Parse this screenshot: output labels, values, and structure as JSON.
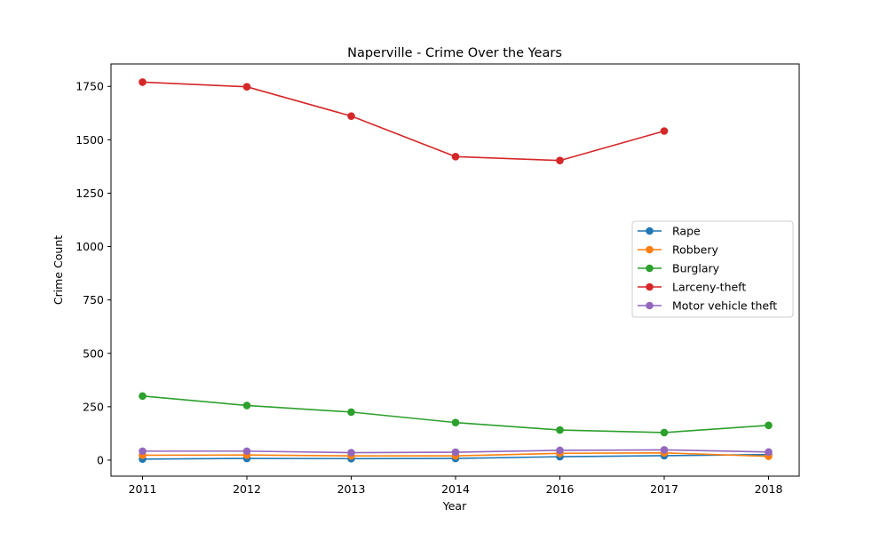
{
  "chart_data": {
    "type": "line",
    "title": "Naperville - Crime Over the Years",
    "xlabel": "Year",
    "ylabel": "Crime Count",
    "categories": [
      "2011",
      "2012",
      "2013",
      "2014",
      "2016",
      "2017",
      "2018"
    ],
    "ylim": [
      -75,
      1855
    ],
    "yticks": [
      0,
      250,
      500,
      750,
      1000,
      1250,
      1500,
      1750
    ],
    "grid": false,
    "legend_position": "center-right",
    "series": [
      {
        "name": "Rape",
        "color": "#1f77b4",
        "values": [
          5,
          8,
          7,
          8,
          16,
          21,
          26
        ]
      },
      {
        "name": "Robbery",
        "color": "#ff7f0e",
        "values": [
          23,
          24,
          20,
          20,
          32,
          34,
          18
        ]
      },
      {
        "name": "Burglary",
        "color": "#2ca02c",
        "values": [
          300,
          256,
          225,
          176,
          141,
          129,
          163
        ]
      },
      {
        "name": "Larceny-theft",
        "color": "#d62728",
        "values": [
          1770,
          1748,
          1611,
          1421,
          1403,
          1541,
          null
        ]
      },
      {
        "name": "Motor vehicle theft",
        "color": "#9467bd",
        "values": [
          42,
          42,
          35,
          37,
          46,
          48,
          38
        ]
      }
    ]
  }
}
